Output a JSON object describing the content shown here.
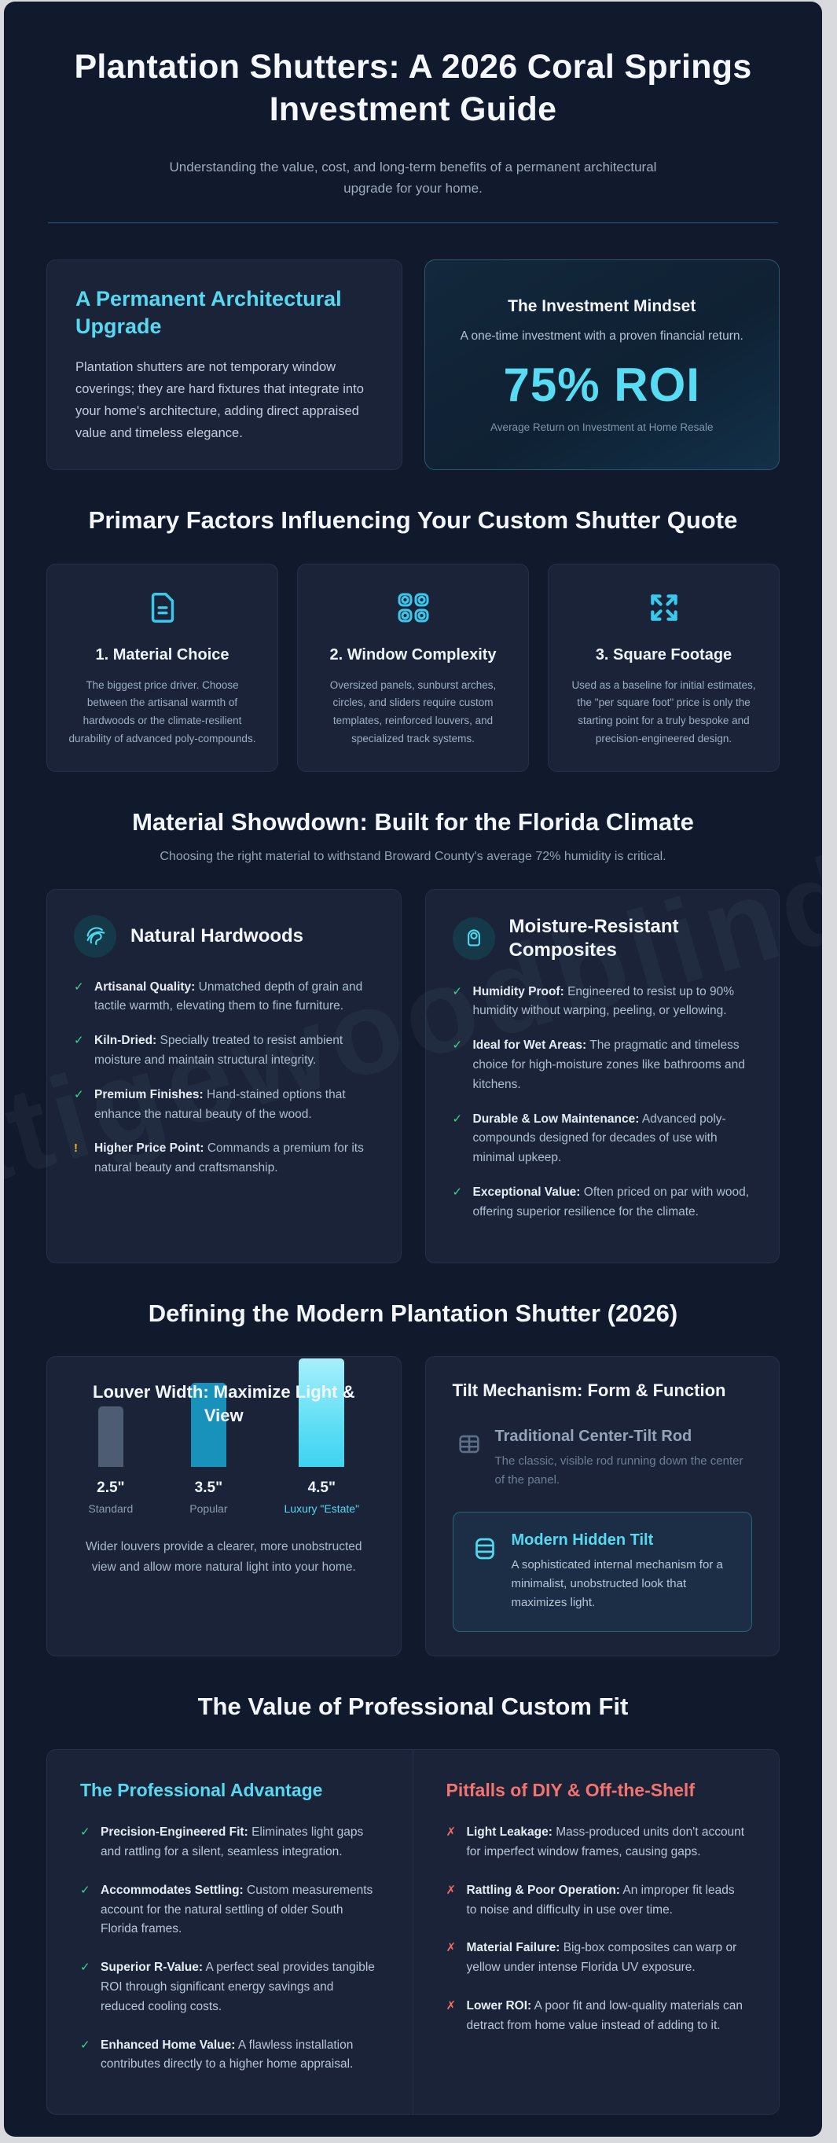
{
  "watermark": "atigewoodblinds.c",
  "colors": {
    "accent_cyan": "#56d9f0",
    "check_green": "#3dd68c",
    "warn_amber": "#e7b60d",
    "error_red": "#f3736f"
  },
  "hero": {
    "title": "Plantation Shutters: A 2026 Coral Springs Investment Guide",
    "subtitle": "Understanding the value, cost, and long-term benefits of a permanent architectural upgrade for your home."
  },
  "intro": {
    "left": {
      "title": "A Permanent Architectural Upgrade",
      "body": "Plantation shutters are not temporary window coverings; they are hard fixtures that integrate into your home's architecture, adding direct appraised value and timeless elegance."
    },
    "right": {
      "title": "The Investment Mindset",
      "subtitle": "A one-time investment with a proven financial return.",
      "stat": "75% ROI",
      "caption": "Average Return on Investment at Home Resale"
    }
  },
  "factors": {
    "heading": "Primary Factors Influencing Your Custom Shutter Quote",
    "cards": [
      {
        "icon": "document-icon",
        "title": "1. Material Choice",
        "body": "The biggest price driver. Choose between the artisanal warmth of hardwoods or the climate-resilient durability of advanced poly-compounds."
      },
      {
        "icon": "window-shapes-icon",
        "title": "2. Window Complexity",
        "body": "Oversized panels, sunburst arches, circles, and sliders require custom templates, reinforced louvers, and specialized track systems."
      },
      {
        "icon": "expand-arrows-icon",
        "title": "3. Square Footage",
        "body": "Used as a baseline for initial estimates, the \"per square foot\" price is only the starting point for a truly bespoke and precision-engineered design."
      }
    ]
  },
  "materials": {
    "heading": "Material Showdown: Built for the Florida Climate",
    "subtitle": "Choosing the right material to withstand Broward County's average 72% humidity is critical.",
    "left": {
      "title": "Natural Hardwoods",
      "items": [
        {
          "marker": "✓",
          "label": "Artisanal Quality:",
          "text": "Unmatched depth of grain and tactile warmth, elevating them to fine furniture."
        },
        {
          "marker": "✓",
          "label": "Kiln-Dried:",
          "text": "Specially treated to resist ambient moisture and maintain structural integrity."
        },
        {
          "marker": "✓",
          "label": "Premium Finishes:",
          "text": "Hand-stained options that enhance the natural beauty of the wood."
        },
        {
          "marker": "!",
          "label": "Higher Price Point:",
          "text": "Commands a premium for its natural beauty and craftsmanship."
        }
      ]
    },
    "right": {
      "title": "Moisture-Resistant Composites",
      "items": [
        {
          "marker": "✓",
          "label": "Humidity Proof:",
          "text": "Engineered to resist up to 90% humidity without warping, peeling, or yellowing."
        },
        {
          "marker": "✓",
          "label": "Ideal for Wet Areas:",
          "text": "The pragmatic and timeless choice for high-moisture zones like bathrooms and kitchens."
        },
        {
          "marker": "✓",
          "label": "Durable & Low Maintenance:",
          "text": "Advanced poly-compounds designed for decades of use with minimal upkeep."
        },
        {
          "marker": "✓",
          "label": "Exceptional Value:",
          "text": "Often priced on par with wood, offering superior resilience for the climate."
        }
      ]
    }
  },
  "modern": {
    "heading": "Defining the Modern Plantation Shutter (2026)",
    "louver": {
      "title": "Louver Width: Maximize Light & View",
      "caption": "Wider louvers provide a clearer, more unobstructed view and allow more natural light into your home."
    },
    "tilt": {
      "title": "Tilt Mechanism: Form & Function",
      "traditional": {
        "title": "Traditional Center-Tilt Rod",
        "body": "The classic, visible rod running down the center of the panel."
      },
      "modern": {
        "title": "Modern Hidden Tilt",
        "body": "A sophisticated internal mechanism for a minimalist, unobstructed look that maximizes light."
      }
    }
  },
  "fit": {
    "heading": "The Value of Professional Custom Fit",
    "pro": {
      "title": "The Professional Advantage",
      "items": [
        {
          "marker": "✓",
          "label": "Precision-Engineered Fit:",
          "text": "Eliminates light gaps and rattling for a silent, seamless integration."
        },
        {
          "marker": "✓",
          "label": "Accommodates Settling:",
          "text": "Custom measurements account for the natural settling of older South Florida frames."
        },
        {
          "marker": "✓",
          "label": "Superior R-Value:",
          "text": "A perfect seal provides tangible ROI through significant energy savings and reduced cooling costs."
        },
        {
          "marker": "✓",
          "label": "Enhanced Home Value:",
          "text": "A flawless installation contributes directly to a higher home appraisal."
        }
      ]
    },
    "diy": {
      "title": "Pitfalls of DIY & Off-the-Shelf",
      "items": [
        {
          "marker": "✗",
          "label": "Light Leakage:",
          "text": "Mass-produced units don't account for imperfect window frames, causing gaps."
        },
        {
          "marker": "✗",
          "label": "Rattling & Poor Operation:",
          "text": "An improper fit leads to noise and difficulty in use over time."
        },
        {
          "marker": "✗",
          "label": "Material Failure:",
          "text": "Big-box composites can warp or yellow under intense Florida UV exposure."
        },
        {
          "marker": "✗",
          "label": "Lower ROI:",
          "text": "A poor fit and low-quality materials can detract from home value instead of adding to it."
        }
      ]
    }
  },
  "chart_data": {
    "type": "bar",
    "title": "Louver Width: Maximize Light & View",
    "categories": [
      "2.5\"",
      "3.5\"",
      "4.5\""
    ],
    "sublabels": [
      "Standard",
      "Popular",
      "Luxury \"Estate\""
    ],
    "values": [
      2.5,
      3.5,
      4.5
    ],
    "unit": "inches",
    "colors": [
      "#4d5c72",
      "#1992bb",
      "gradient"
    ],
    "xlabel": "",
    "ylabel": "",
    "grid": false,
    "legend": false
  }
}
